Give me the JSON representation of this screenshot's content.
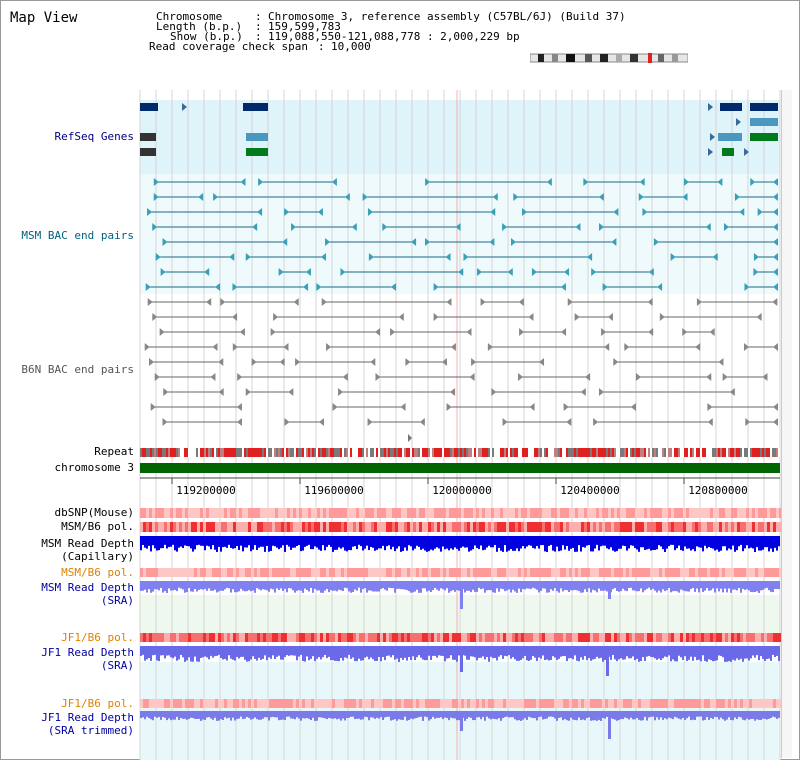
{
  "app": {
    "title": "Map View"
  },
  "info": {
    "chromosome_label": "Chromosome",
    "chromosome_value": "Chromosome 3, reference assembly (C57BL/6J) (Build 37)",
    "length_label": "Length (b.p.)",
    "length_value": "159,599,783",
    "show_label": "Show (b.p.)",
    "show_value": "119,088,550-121,088,778 : 2,000,229 bp",
    "span_label": "Read coverage check span",
    "span_value": "10,000"
  },
  "tracks": {
    "refseq": {
      "label": "RefSeq Genes",
      "color": "#000080"
    },
    "msm_bac": {
      "label": "MSM BAC end pairs",
      "color": "#006080"
    },
    "b6n_bac": {
      "label": "B6N BAC end pairs",
      "color": "#555555"
    },
    "repeat": {
      "label": "Repeat"
    },
    "chromosome": {
      "label": "chromosome 3",
      "color": "#006400"
    },
    "dbsnp": {
      "label": "dbSNP(Mouse)"
    },
    "msm_b6_pol": {
      "label": "MSM/B6 pol."
    },
    "msm_depth_cap": {
      "label1": "MSM Read Depth",
      "label2": "(Capillary)"
    },
    "msm_b6_pol2": {
      "label": "MSM/B6 pol.",
      "color": "#e08000"
    },
    "msm_depth_sra": {
      "label1": "MSM Read Depth",
      "label2": "(SRA)",
      "color": "#0000a0"
    },
    "jf1_b6_pol": {
      "label": "JF1/B6 pol.",
      "color": "#e08000"
    },
    "jf1_depth_sra": {
      "label1": "JF1 Read Depth",
      "label2": "(SRA)",
      "color": "#0000a0"
    },
    "jf1_b6_pol2": {
      "label": "JF1/B6 pol.",
      "color": "#e08000"
    },
    "jf1_depth_trim": {
      "label1": "JF1 Read Depth",
      "label2": "(SRA trimmed)",
      "color": "#0000a0"
    }
  },
  "ruler": {
    "ticks": [
      "119200000",
      "119600000",
      "120000000",
      "120400000",
      "120800000"
    ]
  }
}
